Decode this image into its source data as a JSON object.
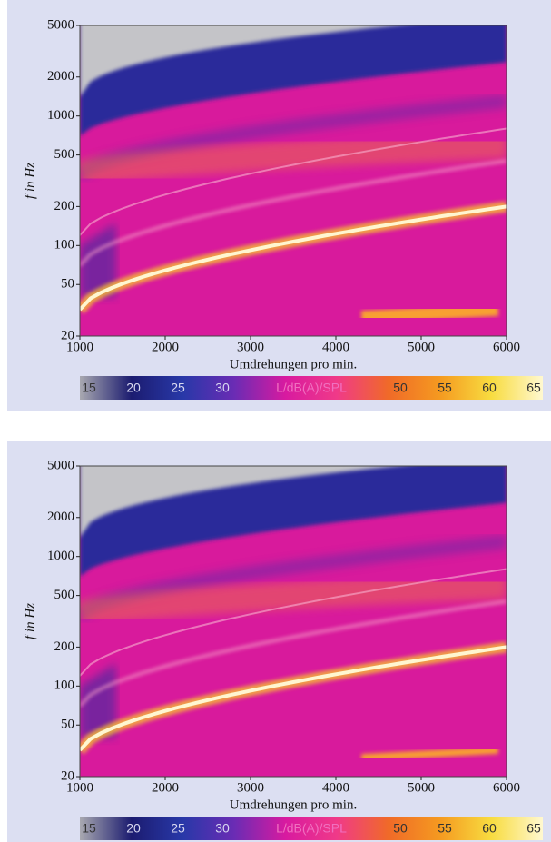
{
  "chart_data": [
    {
      "type": "spectrogram",
      "xlabel": "Umdrehungen pro min.",
      "ylabel": "f in Hz",
      "xlim": [
        1000,
        6000
      ],
      "xticks": [
        1000,
        2000,
        3000,
        4000,
        5000,
        6000
      ],
      "ylim": [
        20,
        5000
      ],
      "yticks": [
        20,
        50,
        100,
        200,
        500,
        1000,
        2000,
        5000
      ],
      "yscale": "log",
      "colorbar": {
        "label": "L/dB(A)/SPL",
        "lim": [
          15,
          65
        ],
        "ticks": [
          15,
          20,
          25,
          30,
          50,
          55,
          60,
          65
        ],
        "colors": [
          "#a8a8b0",
          "#1c1c70",
          "#2838a8",
          "#6a2cb4",
          "#d81aa0",
          "#f03a88",
          "#f06a28",
          "#f59a20",
          "#f8dc40",
          "#fff8d0"
        ]
      }
    },
    {
      "type": "spectrogram",
      "xlabel": "Umdrehungen pro min.",
      "ylabel": "f in Hz",
      "xlim": [
        1000,
        6000
      ],
      "xticks": [
        1000,
        2000,
        3000,
        4000,
        5000,
        6000
      ],
      "ylim": [
        20,
        5000
      ],
      "yticks": [
        20,
        50,
        100,
        200,
        500,
        1000,
        2000,
        5000
      ],
      "yscale": "log",
      "colorbar": {
        "label": "L/dB(A)/SPL",
        "lim": [
          15,
          65
        ],
        "ticks": [
          15,
          20,
          25,
          30,
          50,
          55,
          60,
          65
        ],
        "colors": [
          "#a8a8b0",
          "#1c1c70",
          "#2838a8",
          "#6a2cb4",
          "#d81aa0",
          "#f03a88",
          "#f06a28",
          "#f59a20",
          "#f8dc40",
          "#fff8d0"
        ]
      }
    }
  ]
}
